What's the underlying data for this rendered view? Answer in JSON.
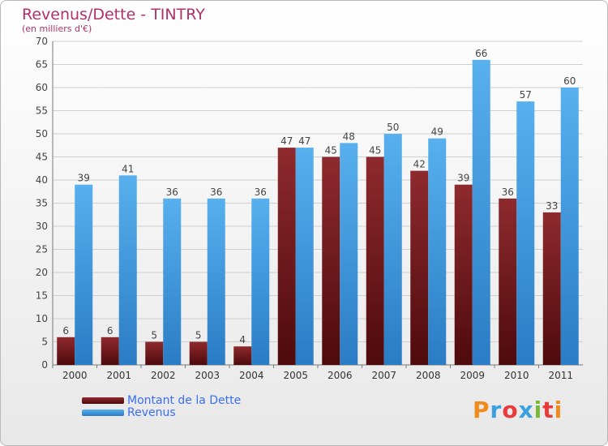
{
  "chart_data": {
    "type": "bar",
    "title": "Revenus/Dette - TINTRY",
    "subtitle": "(en milliers d'€)",
    "categories": [
      "2000",
      "2001",
      "2002",
      "2003",
      "2004",
      "2005",
      "2006",
      "2007",
      "2008",
      "2009",
      "2010",
      "2011"
    ],
    "series": [
      {
        "name": "Montant de la Dette",
        "color": "#7a1e22",
        "values": [
          6,
          6,
          5,
          5,
          4,
          47,
          45,
          45,
          42,
          39,
          36,
          33
        ]
      },
      {
        "name": "Revenus",
        "color": "#3d9de2",
        "values": [
          39,
          41,
          36,
          36,
          36,
          47,
          48,
          50,
          49,
          66,
          57,
          60
        ]
      }
    ],
    "ylim": [
      0,
      70
    ],
    "yticks": [
      0,
      5,
      10,
      15,
      20,
      25,
      30,
      35,
      40,
      45,
      50,
      55,
      60,
      65,
      70
    ],
    "grid": true,
    "legend_position": "bottom-left"
  },
  "branding": {
    "logo_text": "Proxiti",
    "logo_colors": [
      "#f08a1c",
      "#3aa0e0",
      "#e83a3a",
      "#3aa0e0",
      "#7ab83a",
      "#e83a3a",
      "#f08a1c"
    ]
  }
}
